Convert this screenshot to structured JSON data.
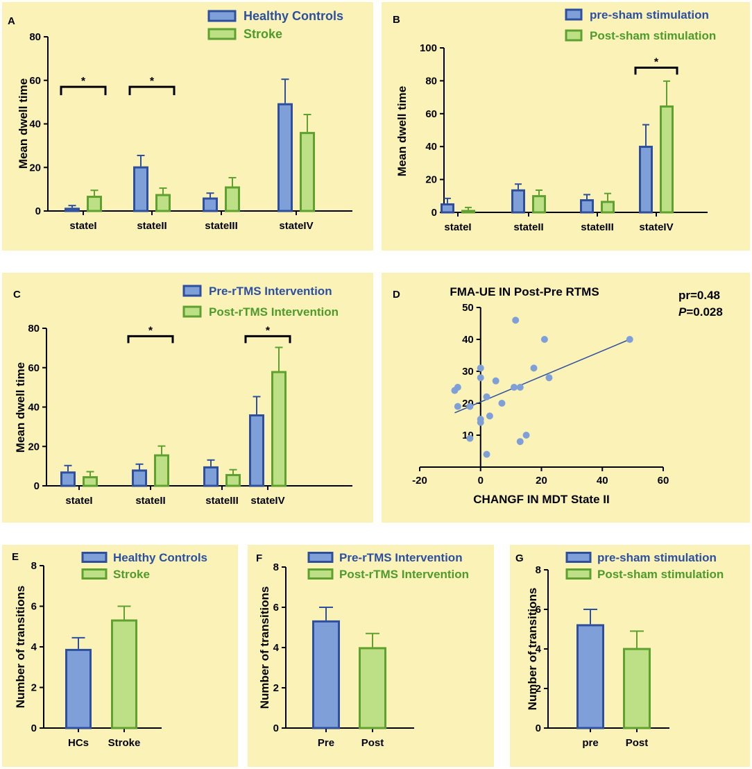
{
  "colors": {
    "panel_bg": "#fbf2b8",
    "blue_fill": "#7f9fd8",
    "blue_edge": "#2e4f9e",
    "green_fill": "#bddf86",
    "green_edge": "#5ea12e",
    "legend_blue_text": "#2c4fa0",
    "legend_green_text": "#4e9a2a",
    "axis": "#000000",
    "scatter_point": "#7f9fd8",
    "trend_line": "#2e4f9e"
  },
  "chart_data": [
    {
      "id": "A",
      "letter": "A",
      "type": "bar",
      "title": "",
      "xlabel": "",
      "ylabel": "Mean dwell time",
      "ylim": [
        0,
        80
      ],
      "yticks": [
        0,
        20,
        40,
        60,
        80
      ],
      "categories": [
        "stateI",
        "stateII",
        "stateIII",
        "stateIV"
      ],
      "series": [
        {
          "name": "Healthy Controls",
          "values": [
            1.5,
            20.5,
            6.2,
            49.5
          ],
          "errors": [
            1.0,
            5.0,
            2.0,
            11.0
          ]
        },
        {
          "name": "Stroke",
          "values": [
            7.0,
            7.8,
            11.3,
            36.3
          ],
          "errors": [
            2.5,
            2.7,
            4.0,
            8.0
          ]
        }
      ],
      "legend": "top-right",
      "significance": [
        {
          "category": "stateI",
          "label": "*",
          "y": 57
        },
        {
          "category": "stateII",
          "label": "*",
          "y": 57
        }
      ]
    },
    {
      "id": "B",
      "letter": "B",
      "type": "bar",
      "title": "",
      "xlabel": "",
      "ylabel": "Mean dwell time",
      "ylim": [
        0,
        100
      ],
      "yticks": [
        0,
        20,
        40,
        60,
        80,
        100
      ],
      "categories": [
        "stateI",
        "stateII",
        "stateIII",
        "stateIV"
      ],
      "series": [
        {
          "name": "pre-sham stimulation",
          "values": [
            5.5,
            14.0,
            8.0,
            40.5
          ],
          "errors": [
            3.0,
            3.2,
            2.8,
            12.8
          ]
        },
        {
          "name": "Post-sham stimulation",
          "values": [
            1.5,
            10.5,
            7.0,
            65.0
          ],
          "errors": [
            1.5,
            3.0,
            4.5,
            14.8
          ]
        }
      ],
      "legend": "top-right",
      "significance": [
        {
          "category": "stateIV",
          "label": "*",
          "y": 88
        }
      ]
    },
    {
      "id": "C",
      "letter": "C",
      "type": "bar",
      "title": "",
      "xlabel": "",
      "ylabel": "Mean dwell time",
      "ylim": [
        0,
        80
      ],
      "yticks": [
        0,
        20,
        40,
        60,
        80
      ],
      "categories": [
        "stateI",
        "stateII",
        "stateIII",
        "stateIV"
      ],
      "series": [
        {
          "name": "Pre-rTMS Intervention",
          "values": [
            7.3,
            8.3,
            9.9,
            36.3
          ],
          "errors": [
            3.0,
            2.7,
            3.2,
            9.0
          ]
        },
        {
          "name": "Post-rTMS Intervention",
          "values": [
            4.9,
            16.0,
            6.0,
            58.3
          ],
          "errors": [
            2.3,
            4.2,
            2.2,
            12.0
          ]
        }
      ],
      "legend": "top-right",
      "significance": [
        {
          "category": "stateII",
          "label": "*",
          "y": 76
        },
        {
          "category": "stateIV",
          "label": "*",
          "y": 76
        }
      ]
    },
    {
      "id": "D",
      "letter": "D",
      "type": "scatter",
      "title": "FMA-UE IN Post-Pre RTMS",
      "xlabel": "CHANGF IN MDT State II",
      "ylabel": "",
      "xlim": [
        -20,
        60
      ],
      "ylim": [
        0,
        50
      ],
      "xticks": [
        -20,
        0,
        20,
        40,
        60
      ],
      "yticks": [
        10,
        20,
        30,
        40,
        50
      ],
      "stat_r": "pr=0.48",
      "stat_p_symbol": "P",
      "stat_p_value": "=0.028",
      "points": [
        {
          "x": 49,
          "y": 40
        },
        {
          "x": 21,
          "y": 40
        },
        {
          "x": 11.5,
          "y": 46
        },
        {
          "x": 17.5,
          "y": 31
        },
        {
          "x": 22.5,
          "y": 28
        },
        {
          "x": 11,
          "y": 25
        },
        {
          "x": 13,
          "y": 25
        },
        {
          "x": 5,
          "y": 27
        },
        {
          "x": 0,
          "y": 31
        },
        {
          "x": 0,
          "y": 28
        },
        {
          "x": -7.5,
          "y": 25
        },
        {
          "x": -8.5,
          "y": 24
        },
        {
          "x": -7.5,
          "y": 19
        },
        {
          "x": -3.5,
          "y": 19
        },
        {
          "x": 2,
          "y": 22
        },
        {
          "x": 7,
          "y": 20
        },
        {
          "x": 3,
          "y": 16
        },
        {
          "x": 0,
          "y": 15
        },
        {
          "x": 0,
          "y": 14
        },
        {
          "x": 15,
          "y": 10
        },
        {
          "x": 13,
          "y": 8
        },
        {
          "x": -3.5,
          "y": 9
        },
        {
          "x": 2,
          "y": 4
        }
      ],
      "trend": {
        "x1": -8.5,
        "y1": 17,
        "x2": 49,
        "y2": 40
      }
    },
    {
      "id": "E",
      "letter": "E",
      "type": "bar",
      "title": "",
      "xlabel": "",
      "ylabel": "Number of transitions",
      "ylim": [
        0,
        8
      ],
      "yticks": [
        0,
        2,
        4,
        6,
        8
      ],
      "categories": [
        "HCs",
        "Stroke"
      ],
      "series": [
        {
          "name": "Healthy Controls"
        },
        {
          "name": "Stroke"
        }
      ],
      "values": [
        3.9,
        5.35
      ],
      "errors": [
        0.55,
        0.65
      ],
      "legend": "top-right"
    },
    {
      "id": "F",
      "letter": "F",
      "type": "bar",
      "title": "",
      "xlabel": "",
      "ylabel": "Number of transitions",
      "ylim": [
        0,
        8
      ],
      "yticks": [
        0,
        2,
        4,
        6,
        8
      ],
      "categories": [
        "Pre",
        "Post"
      ],
      "series": [
        {
          "name": "Pre-rTMS Intervention"
        },
        {
          "name": "Post-rTMS Intervention"
        }
      ],
      "values": [
        5.35,
        4.02
      ],
      "errors": [
        0.65,
        0.68
      ],
      "legend": "top-right"
    },
    {
      "id": "G",
      "letter": "G",
      "type": "bar",
      "title": "",
      "xlabel": "",
      "ylabel": "Number of transitions",
      "ylim": [
        0,
        8
      ],
      "yticks": [
        0,
        2,
        4,
        6,
        8
      ],
      "categories": [
        "pre",
        "Post"
      ],
      "series": [
        {
          "name": "pre-sham stimulation"
        },
        {
          "name": "Post-sham stimulation"
        }
      ],
      "values": [
        5.25,
        4.05
      ],
      "errors": [
        0.75,
        0.85
      ],
      "legend": "top-right"
    }
  ]
}
